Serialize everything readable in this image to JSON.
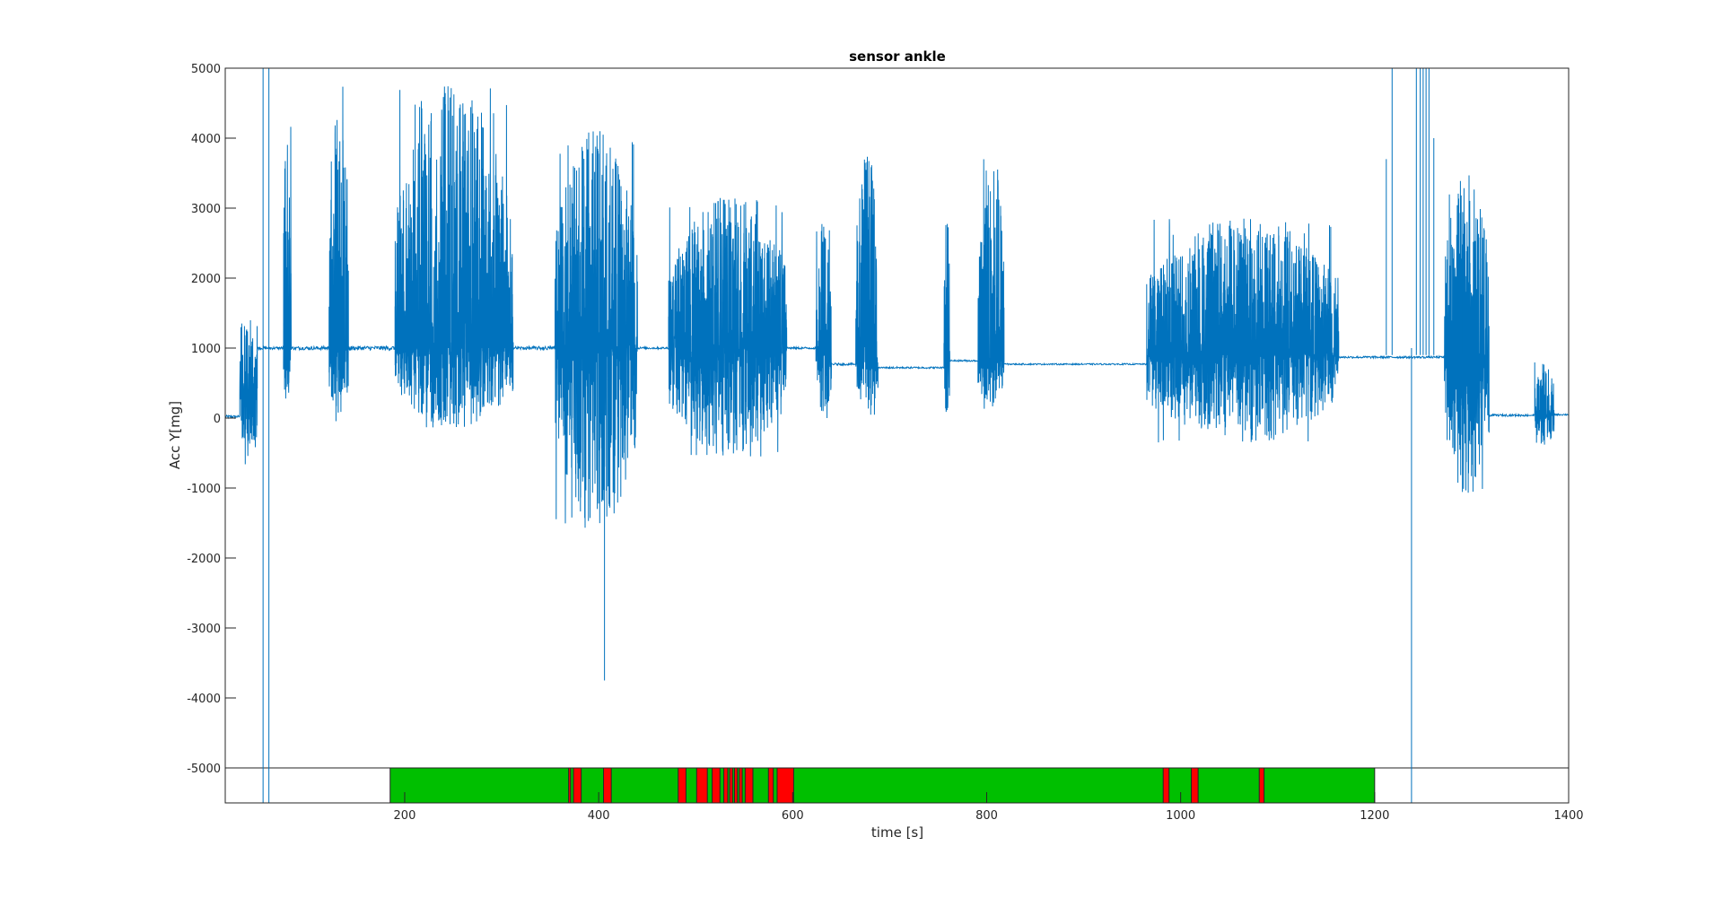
{
  "chart_data": {
    "type": "line",
    "title": "sensor ankle",
    "xlabel": "time [s]",
    "ylabel": "Acc Y[mg]",
    "xlim": [
      15,
      1400
    ],
    "ylim": [
      -5500,
      5000
    ],
    "x_ticks": [
      200,
      400,
      600,
      800,
      1000,
      1200,
      1400
    ],
    "y_ticks": [
      5000,
      4000,
      3000,
      2000,
      1000,
      0,
      -1000,
      -2000,
      -3000,
      -4000,
      -5000
    ],
    "grid": false,
    "line_color": "#0072BD",
    "series": [
      {
        "segments": [
          {
            "type": "quiet",
            "x0": 15,
            "x1": 30,
            "base": 20,
            "amp": 40
          },
          {
            "type": "burst",
            "x0": 30,
            "x1": 48,
            "base": 300,
            "lo": -800,
            "hi": 1400
          },
          {
            "type": "quiet",
            "x0": 48,
            "x1": 78,
            "base": 1000,
            "amp": 40
          },
          {
            "type": "burst",
            "x0": 75,
            "x1": 83,
            "base": 1000,
            "lo": 0,
            "hi": 4300
          },
          {
            "type": "quiet",
            "x0": 83,
            "x1": 122,
            "base": 1000,
            "amp": 50
          },
          {
            "type": "burst",
            "x0": 122,
            "x1": 142,
            "base": 1000,
            "lo": -50,
            "hi": 4750
          },
          {
            "type": "quiet",
            "x0": 142,
            "x1": 190,
            "base": 1000,
            "amp": 60
          },
          {
            "type": "burst",
            "x0": 190,
            "x1": 312,
            "base": 1000,
            "lo": -150,
            "hi": 4750
          },
          {
            "type": "quiet",
            "x0": 312,
            "x1": 355,
            "base": 1000,
            "amp": 50
          },
          {
            "type": "burst",
            "x0": 355,
            "x1": 440,
            "base": 1000,
            "lo": -1650,
            "hi": 4150
          },
          {
            "type": "quiet",
            "x0": 440,
            "x1": 472,
            "base": 1000,
            "amp": 30
          },
          {
            "type": "burst",
            "x0": 472,
            "x1": 594,
            "base": 1000,
            "lo": -550,
            "hi": 3200
          },
          {
            "type": "quiet",
            "x0": 594,
            "x1": 624,
            "base": 1000,
            "amp": 30
          },
          {
            "type": "burst",
            "x0": 624,
            "x1": 640,
            "base": 900,
            "lo": 0,
            "hi": 2850
          },
          {
            "type": "quiet",
            "x0": 640,
            "x1": 665,
            "base": 770,
            "amp": 30
          },
          {
            "type": "burst",
            "x0": 665,
            "x1": 688,
            "base": 800,
            "lo": 50,
            "hi": 3950
          },
          {
            "type": "quiet",
            "x0": 688,
            "x1": 756,
            "base": 720,
            "amp": 25
          },
          {
            "type": "burst",
            "x0": 756,
            "x1": 762,
            "base": 750,
            "lo": -100,
            "hi": 3100
          },
          {
            "type": "quiet",
            "x0": 762,
            "x1": 791,
            "base": 820,
            "amp": 25
          },
          {
            "type": "burst",
            "x0": 791,
            "x1": 818,
            "base": 820,
            "lo": 150,
            "hi": 3850
          },
          {
            "type": "quiet",
            "x0": 818,
            "x1": 965,
            "base": 770,
            "amp": 20
          },
          {
            "type": "burst",
            "x0": 965,
            "x1": 1163,
            "base": 900,
            "lo": -350,
            "hi": 2900
          },
          {
            "type": "quiet",
            "x0": 1163,
            "x1": 1272,
            "base": 870,
            "amp": 30
          },
          {
            "type": "burst",
            "x0": 1272,
            "x1": 1318,
            "base": 870,
            "lo": -1100,
            "hi": 3550
          },
          {
            "type": "quiet",
            "x0": 1318,
            "x1": 1365,
            "base": 40,
            "amp": 30
          },
          {
            "type": "burst",
            "x0": 1365,
            "x1": 1385,
            "base": 40,
            "lo": -400,
            "hi": 800
          },
          {
            "type": "quiet",
            "x0": 1385,
            "x1": 1400,
            "base": 50,
            "amp": 25
          }
        ],
        "spikes": [
          {
            "x": 54,
            "lo": -5500,
            "hi": 5000
          },
          {
            "x": 60,
            "lo": -5500,
            "hi": 5000
          },
          {
            "x": 1238,
            "lo": -5500,
            "hi": 1000
          },
          {
            "x": 406,
            "lo": -3750,
            "hi": 1000
          },
          {
            "x": 1212,
            "lo": 900,
            "hi": 3700
          },
          {
            "x": 1218,
            "lo": 900,
            "hi": 5000
          },
          {
            "x": 1243,
            "lo": 900,
            "hi": 5000
          },
          {
            "x": 1247,
            "lo": 900,
            "hi": 5000
          },
          {
            "x": 1250,
            "lo": 900,
            "hi": 5000
          },
          {
            "x": 1253,
            "lo": 900,
            "hi": 5000
          },
          {
            "x": 1256,
            "lo": 900,
            "hi": 5000
          },
          {
            "x": 1261,
            "lo": 900,
            "hi": 4000
          },
          {
            "x": 1291,
            "lo": 900,
            "hi": 2300
          }
        ]
      }
    ],
    "activity_band": {
      "y_range": [
        -5500,
        -5000
      ],
      "colors": {
        "green": "#00BF00",
        "red": "#FF0000",
        "empty": "#ffffff"
      },
      "green_span": [
        185,
        1200
      ],
      "red_blocks": [
        [
          369,
          371
        ],
        [
          374,
          382
        ],
        [
          405,
          413
        ],
        [
          482,
          490
        ],
        [
          501,
          512
        ],
        [
          517,
          525
        ],
        [
          529,
          533
        ],
        [
          535,
          538
        ],
        [
          540,
          543
        ],
        [
          545,
          548
        ],
        [
          551,
          559
        ],
        [
          575,
          580
        ],
        [
          584,
          601
        ],
        [
          982,
          988
        ],
        [
          1011,
          1018
        ],
        [
          1081,
          1086
        ]
      ]
    }
  }
}
